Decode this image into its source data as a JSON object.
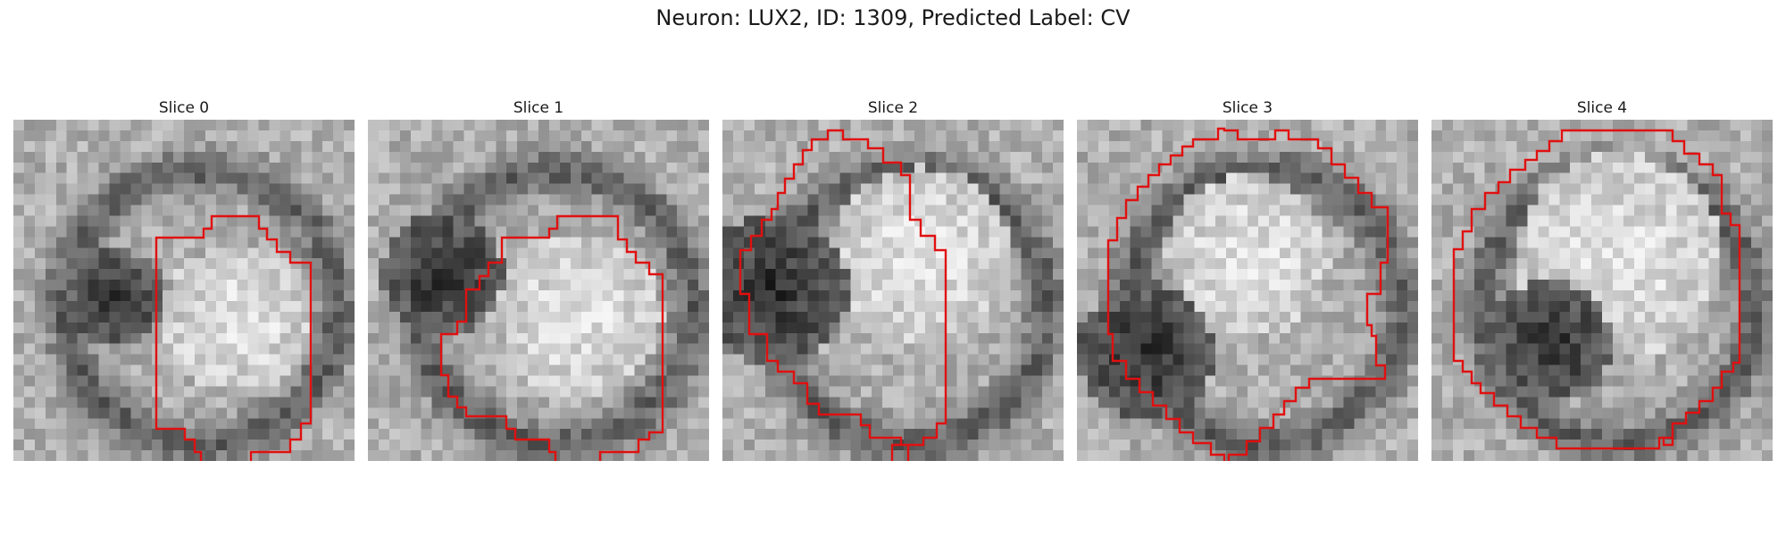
{
  "figure": {
    "title": "Neuron: LUX2, ID: 1309, Predicted Label: CV",
    "contour_color": "#e01010",
    "colormap": "grayscale"
  },
  "slices": [
    {
      "label": "Slice 0"
    },
    {
      "label": "Slice 1"
    },
    {
      "label": "Slice 2"
    },
    {
      "label": "Slice 3"
    },
    {
      "label": "Slice 4"
    }
  ]
}
